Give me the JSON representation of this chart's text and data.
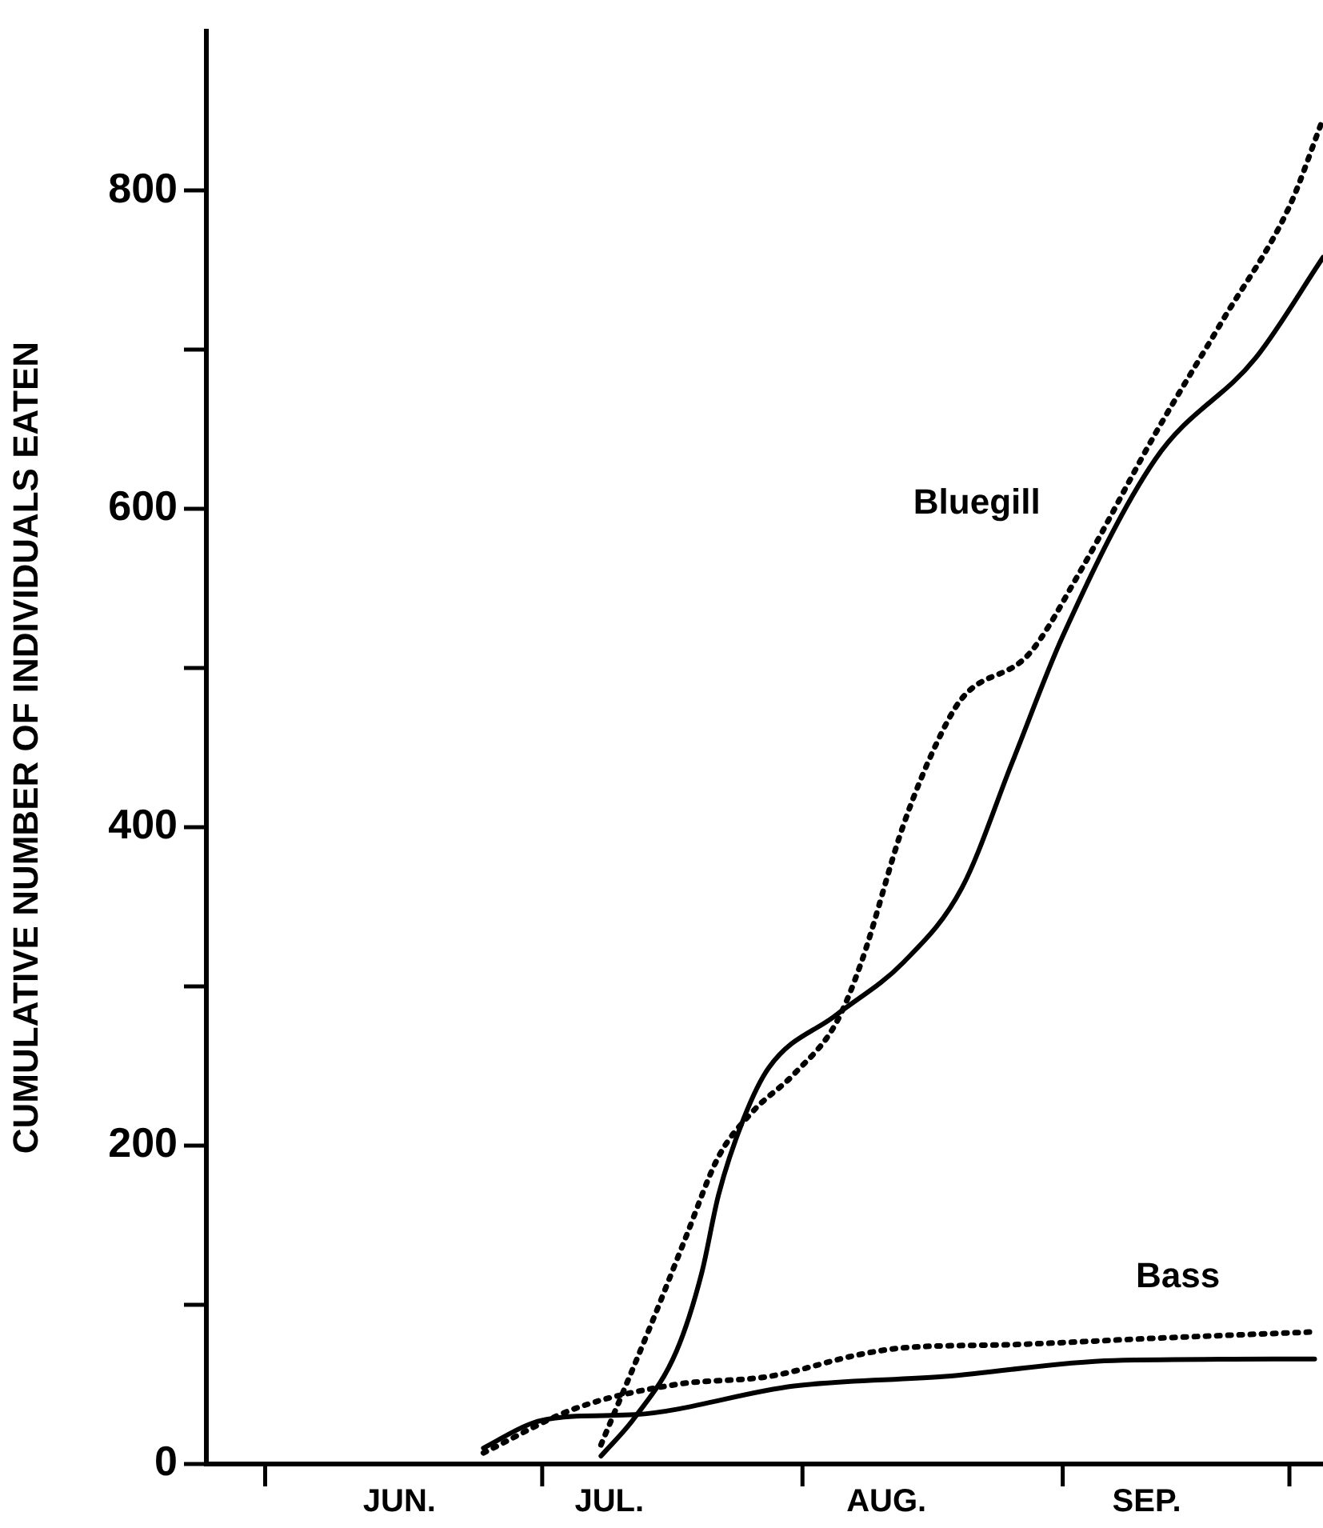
{
  "chart_data": {
    "type": "line",
    "ylabel": "CUMULATIVE NUMBER OF INDIVIDUALS EATEN",
    "xlim": [
      "--05-25",
      "--10-05"
    ],
    "xticks": [
      {
        "value": "--06-01",
        "label": null
      },
      {
        "value": "--06-17",
        "label": "JUN."
      },
      {
        "value": "--07-04",
        "label": null
      },
      {
        "value": "--07-12",
        "label": "JUL."
      },
      {
        "value": "--08-04",
        "label": null
      },
      {
        "value": "--08-14",
        "label": "AUG."
      },
      {
        "value": "--09-04",
        "label": null
      },
      {
        "value": "--09-14",
        "label": "SEP."
      },
      {
        "value": "--10-01",
        "label": null
      }
    ],
    "ylim": [
      0,
      900
    ],
    "yticks": [
      0,
      {
        "value": 100,
        "label": null
      },
      200,
      {
        "value": 300,
        "label": null
      },
      400,
      {
        "value": 500,
        "label": null
      },
      600,
      {
        "value": 700,
        "label": null
      },
      800
    ],
    "marker": "none",
    "legend": false,
    "series": [
      {
        "color": "#000000",
        "line_style": "solid",
        "x": [
          "--06-27",
          "--07-03",
          "--07-08",
          "--07-15",
          "--08-03",
          "--08-21",
          "--09-10",
          "--10-04"
        ],
        "values": [
          10,
          26,
          30,
          31,
          49,
          55,
          65,
          66
        ]
      },
      {
        "color": "#000000",
        "line_style": "dotted",
        "x": [
          "--06-27",
          "--07-08",
          "--07-20",
          "--07-31",
          "--08-11",
          "--08-16",
          "--08-29",
          "--09-15",
          "--10-04"
        ],
        "values": [
          7,
          35,
          50,
          55,
          69,
          73,
          75,
          79,
          83
        ]
      },
      {
        "color": "#000000",
        "line_style": "solid",
        "x": [
          "--07-11",
          "--07-15",
          "--07-20",
          "--07-23",
          "--07-25",
          "--07-28",
          "--07-31",
          "--08-08",
          "--08-16",
          "--08-23",
          "--08-29",
          "--09-04",
          "--09-15",
          "--09-27",
          "--10-05"
        ],
        "values": [
          5,
          29,
          71,
          120,
          169,
          217,
          249,
          282,
          315,
          362,
          441,
          520,
          631,
          695,
          758
        ]
      },
      {
        "color": "#000000",
        "line_style": "dotted",
        "x": [
          "--07-11",
          "--07-17",
          "--07-21",
          "--07-25",
          "--07-29",
          "--08-03",
          "--08-08",
          "--08-11",
          "--08-16",
          "--08-20",
          "--08-23",
          "--08-31",
          "--09-06",
          "--09-15",
          "--09-23",
          "--10-01",
          "--10-05"
        ],
        "values": [
          12,
          88,
          141,
          193,
          221,
          245,
          277,
          315,
          401,
          453,
          481,
          509,
          560,
          647,
          718,
          790,
          845
        ]
      }
    ],
    "annotations": [
      "Bluegill",
      "Bass"
    ]
  }
}
